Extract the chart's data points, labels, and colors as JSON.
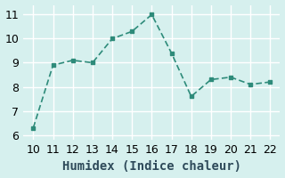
{
  "x": [
    10,
    11,
    12,
    13,
    14,
    15,
    16,
    17,
    18,
    19,
    20,
    21,
    22
  ],
  "y": [
    6.3,
    8.9,
    9.1,
    9.0,
    10.0,
    10.3,
    11.0,
    9.4,
    7.6,
    8.3,
    8.4,
    8.1,
    8.2
  ],
  "xlim": [
    9.5,
    22.5
  ],
  "ylim": [
    5.8,
    11.4
  ],
  "xticks": [
    10,
    11,
    12,
    13,
    14,
    15,
    16,
    17,
    18,
    19,
    20,
    21,
    22
  ],
  "yticks": [
    6,
    7,
    8,
    9,
    10,
    11
  ],
  "xlabel": "Humidex (Indice chaleur)",
  "line_color": "#2e8b7a",
  "marker": "s",
  "marker_size": 3,
  "background_color": "#d6f0ee",
  "grid_color": "#ffffff",
  "xlabel_fontsize": 10,
  "tick_fontsize": 9
}
